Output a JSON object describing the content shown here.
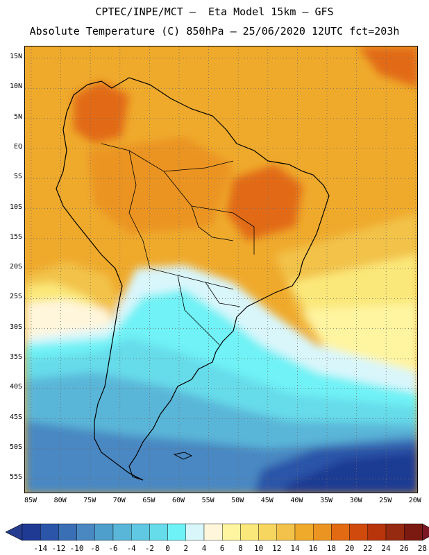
{
  "header": {
    "line1": "CPTEC/INPE/MCT –  Eta Model 15km – GFS",
    "line2": "Absolute Temperature (C) 850hPa – 25/06/2020 12UTC fct=203h"
  },
  "axes": {
    "lat_labels": [
      "15N",
      "10N",
      "5N",
      "EQ",
      "5S",
      "10S",
      "15S",
      "20S",
      "25S",
      "30S",
      "35S",
      "40S",
      "45S",
      "50S",
      "55S"
    ],
    "lon_labels": [
      "85W",
      "80W",
      "75W",
      "70W",
      "65W",
      "60W",
      "55W",
      "50W",
      "45W",
      "40W",
      "35W",
      "30W",
      "25W",
      "20W"
    ]
  },
  "colorbar": {
    "labels": [
      "-14",
      "-12",
      "-10",
      "-8",
      "-6",
      "-4",
      "-2",
      "0",
      "2",
      "4",
      "6",
      "8",
      "10",
      "12",
      "14",
      "16",
      "18",
      "20",
      "22",
      "24",
      "26",
      "28"
    ],
    "colors": [
      "#1f3a93",
      "#2a55a8",
      "#3a6fb5",
      "#4a88c2",
      "#4f9fcc",
      "#5ab6d8",
      "#60c8e2",
      "#66dbea",
      "#6ff2f6",
      "#d9f6fb",
      "#fff6dc",
      "#fff4a0",
      "#fbe87a",
      "#f7d65f",
      "#f2c24a",
      "#efaa2c",
      "#eb9422",
      "#e26a12",
      "#cf4a0c",
      "#b8340b",
      "#962a10",
      "#7a1a10"
    ],
    "under_color": "#263c8f",
    "over_color": "#7a1622"
  },
  "map": {
    "grid_style": "dotted",
    "ocean_cold_color": "#1f3a93",
    "land_outline_color": "#000000"
  }
}
